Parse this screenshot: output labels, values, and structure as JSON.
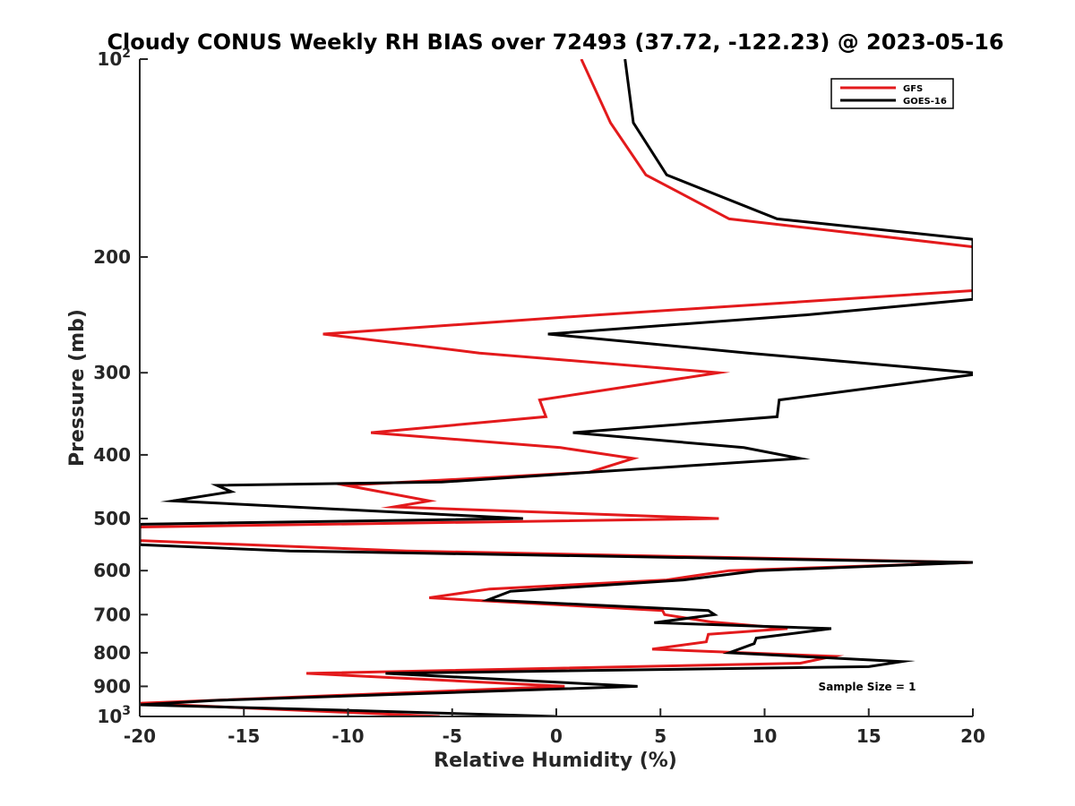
{
  "chart_data": {
    "type": "line",
    "title": "Cloudy CONUS Weekly RH BIAS over 72493 (37.72, -122.23) @ 2023-05-16",
    "xlabel": "Relative Humidity (%)",
    "ylabel": "Pressure (mb)",
    "xlim": [
      -20,
      20
    ],
    "ylim": [
      100,
      1000
    ],
    "y_scale": "log",
    "y_reversed": true,
    "x_ticks": [
      -20,
      -15,
      -10,
      -5,
      0,
      5,
      10,
      15,
      20
    ],
    "x_tick_labels": [
      "-20",
      "-15",
      "-10",
      "-5",
      "0",
      "5",
      "10",
      "15",
      "20"
    ],
    "y_ticks": [
      100,
      200,
      300,
      400,
      500,
      600,
      700,
      800,
      900,
      1000
    ],
    "y_tick_labels": [
      {
        "base": "10",
        "sup": "2"
      },
      {
        "base": "200",
        "sup": ""
      },
      {
        "base": "300",
        "sup": ""
      },
      {
        "base": "400",
        "sup": ""
      },
      {
        "base": "500",
        "sup": ""
      },
      {
        "base": "600",
        "sup": ""
      },
      {
        "base": "700",
        "sup": ""
      },
      {
        "base": "800",
        "sup": ""
      },
      {
        "base": "900",
        "sup": ""
      },
      {
        "base": "10",
        "sup": "3"
      }
    ],
    "legend_position": "top-right",
    "grid": false,
    "annotation": "Sample Size = 1",
    "series": [
      {
        "name": "GFS",
        "color": "#e31a1c",
        "points": [
          [
            1.2,
            100
          ],
          [
            2.6,
            125
          ],
          [
            4.3,
            150
          ],
          [
            8.3,
            175
          ],
          [
            20,
            193
          ],
          [
            20,
            225
          ],
          [
            2,
            245
          ],
          [
            -11.2,
            262
          ],
          [
            -3.7,
            280
          ],
          [
            7.8,
            300
          ],
          [
            -0.8,
            330
          ],
          [
            -0.5,
            350
          ],
          [
            -8.9,
            370
          ],
          [
            0.2,
            390
          ],
          [
            3.7,
            405
          ],
          [
            1.6,
            425
          ],
          [
            -10.1,
            445
          ],
          [
            -6.1,
            470
          ],
          [
            -7.8,
            480
          ],
          [
            7.8,
            500
          ],
          [
            -20,
            515
          ],
          [
            -20,
            540
          ],
          [
            -7.2,
            560
          ],
          [
            20,
            583
          ],
          [
            8.3,
            600
          ],
          [
            5.3,
            620
          ],
          [
            -3.2,
            640
          ],
          [
            -6.1,
            660
          ],
          [
            5.1,
            690
          ],
          [
            5.2,
            700
          ],
          [
            7.4,
            718
          ],
          [
            11.1,
            735
          ],
          [
            7.3,
            750
          ],
          [
            7.2,
            770
          ],
          [
            4.6,
            790
          ],
          [
            13.3,
            810
          ],
          [
            11.7,
            830
          ],
          [
            -12,
            860
          ],
          [
            0.4,
            900
          ],
          [
            -20,
            955
          ],
          [
            -5.6,
            1000
          ]
        ]
      },
      {
        "name": "GOES-16",
        "color": "#000000",
        "points": [
          [
            3.3,
            100
          ],
          [
            3.7,
            125
          ],
          [
            5.3,
            150
          ],
          [
            10.6,
            175
          ],
          [
            20,
            188
          ],
          [
            20,
            232
          ],
          [
            12,
            245
          ],
          [
            -0.4,
            262
          ],
          [
            9.2,
            280
          ],
          [
            20,
            300
          ],
          [
            20,
            302
          ],
          [
            10.7,
            330
          ],
          [
            10.6,
            350
          ],
          [
            0.8,
            370
          ],
          [
            9,
            390
          ],
          [
            11.7,
            405
          ],
          [
            -5.5,
            440
          ],
          [
            -16.3,
            445
          ],
          [
            -15.6,
            455
          ],
          [
            -18.4,
            470
          ],
          [
            -1.6,
            500
          ],
          [
            -20,
            510
          ],
          [
            -20,
            548
          ],
          [
            -12.8,
            560
          ],
          [
            20,
            583
          ],
          [
            9.7,
            600
          ],
          [
            6.1,
            620
          ],
          [
            -2.2,
            645
          ],
          [
            -3.3,
            665
          ],
          [
            7.3,
            690
          ],
          [
            7.6,
            700
          ],
          [
            4.7,
            720
          ],
          [
            13.2,
            735
          ],
          [
            9.6,
            760
          ],
          [
            9.5,
            775
          ],
          [
            8.3,
            800
          ],
          [
            16.6,
            825
          ],
          [
            15,
            840
          ],
          [
            -8.2,
            860
          ],
          [
            3.9,
            900
          ],
          [
            -16.3,
            945
          ],
          [
            -20,
            960
          ],
          [
            -9.4,
            980
          ],
          [
            0,
            1000
          ]
        ]
      }
    ]
  }
}
